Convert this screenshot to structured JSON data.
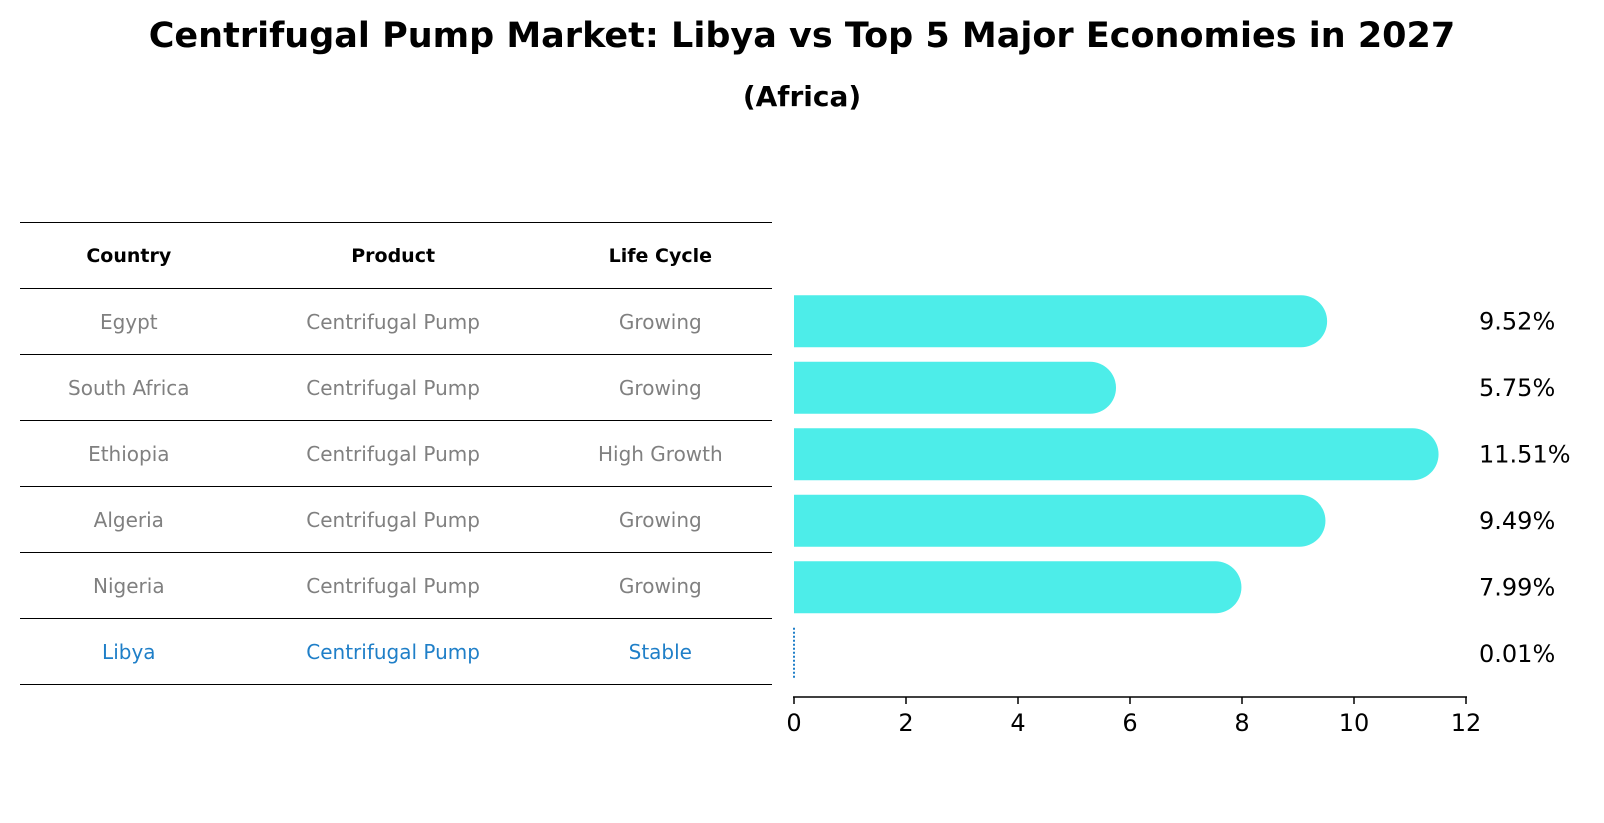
{
  "title": "Centrifugal Pump Market: Libya vs Top 5 Major Economies in 2027",
  "subtitle": "(Africa)",
  "colors": {
    "bar": "#4dede9",
    "highlight": "#1f7fc8",
    "muted_text": "#808080"
  },
  "table": {
    "headers": [
      "Country",
      "Product",
      "Life Cycle"
    ],
    "rows": [
      {
        "country": "Egypt",
        "product": "Centrifugal Pump",
        "life_cycle": "Growing"
      },
      {
        "country": "South Africa",
        "product": "Centrifugal Pump",
        "life_cycle": "Growing"
      },
      {
        "country": "Ethiopia",
        "product": "Centrifugal Pump",
        "life_cycle": "High Growth"
      },
      {
        "country": "Algeria",
        "product": "Centrifugal Pump",
        "life_cycle": "Growing"
      },
      {
        "country": "Nigeria",
        "product": "Centrifugal Pump",
        "life_cycle": "Growing"
      },
      {
        "country": "Libya",
        "product": "Centrifugal Pump",
        "life_cycle": "Stable"
      }
    ]
  },
  "chart_data": {
    "type": "bar",
    "orientation": "horizontal",
    "categories": [
      "Egypt",
      "South Africa",
      "Ethiopia",
      "Algeria",
      "Nigeria",
      "Libya"
    ],
    "values": [
      9.52,
      5.75,
      11.51,
      9.49,
      7.99,
      0.01
    ],
    "value_labels": [
      "9.52%",
      "5.75%",
      "11.51%",
      "9.49%",
      "7.99%",
      "0.01%"
    ],
    "highlight_category": "Libya",
    "xlim": [
      0,
      12
    ],
    "xticks": [
      0,
      2,
      4,
      6,
      8,
      10,
      12
    ],
    "xlabel": "",
    "ylabel": "",
    "grid": false
  }
}
